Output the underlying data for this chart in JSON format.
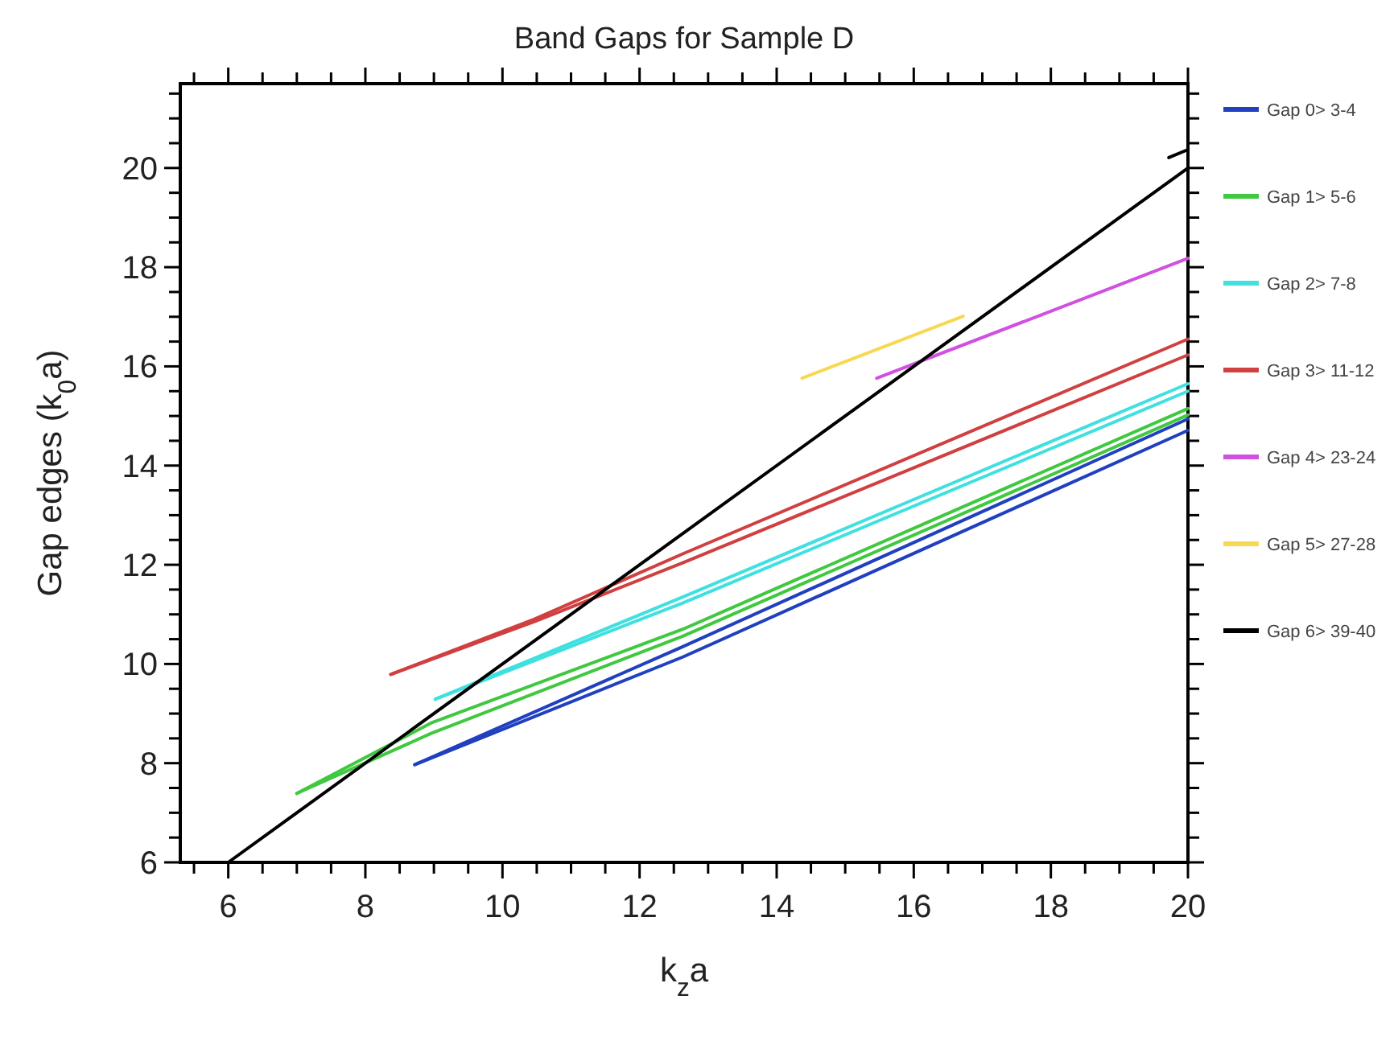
{
  "chart_data": {
    "type": "line",
    "title": "Band Gaps for Sample D",
    "xlabel": "k$_{z}$a",
    "ylabel": "Gap edges (k$_{0}$a)",
    "xlim": [
      5.3,
      20
    ],
    "ylim": [
      6,
      21.7
    ],
    "xticks": [
      {
        "value": 5.5,
        "label": null
      },
      6,
      {
        "value": 6.5,
        "label": null
      },
      {
        "value": 7,
        "label": null
      },
      {
        "value": 7.5,
        "label": null
      },
      8,
      {
        "value": 8.5,
        "label": null
      },
      {
        "value": 9,
        "label": null
      },
      {
        "value": 9.5,
        "label": null
      },
      10,
      {
        "value": 10.5,
        "label": null
      },
      {
        "value": 11,
        "label": null
      },
      {
        "value": 11.5,
        "label": null
      },
      12,
      {
        "value": 12.5,
        "label": null
      },
      {
        "value": 13,
        "label": null
      },
      {
        "value": 13.5,
        "label": null
      },
      14,
      {
        "value": 14.5,
        "label": null
      },
      {
        "value": 15,
        "label": null
      },
      {
        "value": 15.5,
        "label": null
      },
      16,
      {
        "value": 16.5,
        "label": null
      },
      {
        "value": 17,
        "label": null
      },
      {
        "value": 17.5,
        "label": null
      },
      18,
      {
        "value": 18.5,
        "label": null
      },
      {
        "value": 19,
        "label": null
      },
      {
        "value": 19.5,
        "label": null
      },
      20
    ],
    "yticks": [
      6,
      {
        "value": 6.5,
        "label": null
      },
      {
        "value": 7,
        "label": null
      },
      {
        "value": 7.5,
        "label": null
      },
      8,
      {
        "value": 8.5,
        "label": null
      },
      {
        "value": 9,
        "label": null
      },
      {
        "value": 9.5,
        "label": null
      },
      10,
      {
        "value": 10.5,
        "label": null
      },
      {
        "value": 11,
        "label": null
      },
      {
        "value": 11.5,
        "label": null
      },
      12,
      {
        "value": 12.5,
        "label": null
      },
      {
        "value": 13,
        "label": null
      },
      {
        "value": 13.5,
        "label": null
      },
      14,
      {
        "value": 14.5,
        "label": null
      },
      {
        "value": 15,
        "label": null
      },
      {
        "value": 15.5,
        "label": null
      },
      16,
      {
        "value": 16.5,
        "label": null
      },
      {
        "value": 17,
        "label": null
      },
      {
        "value": 17.5,
        "label": null
      },
      18,
      {
        "value": 18.5,
        "label": null
      },
      {
        "value": 19,
        "label": null
      },
      {
        "value": 19.5,
        "label": null
      },
      20,
      {
        "value": 20.5,
        "label": null
      },
      {
        "value": 21,
        "label": null
      },
      {
        "value": 21.5,
        "label": null
      }
    ],
    "grid": false,
    "legend": "right",
    "marker": "none",
    "line_style": "solid",
    "series": [
      {
        "name": "Gap 0> 3-4",
        "color": "#2040c0",
        "x": [
          8.72,
          12.63,
          20
        ],
        "values": [
          7.97,
          10.35,
          14.94
        ]
      },
      {
        "color": "#2040c0",
        "x": [
          8.72,
          12.63,
          20
        ],
        "values": [
          7.97,
          10.14,
          14.71
        ]
      },
      {
        "name": "Gap 1> 5-6",
        "color": "#40c840",
        "x": [
          7,
          8.96,
          12.63,
          20
        ],
        "values": [
          7.39,
          8.81,
          10.7,
          15.15
        ]
      },
      {
        "color": "#40c840",
        "x": [
          7,
          8.96,
          12.63,
          20
        ],
        "values": [
          7.39,
          8.6,
          10.56,
          15.02
        ]
      },
      {
        "name": "Gap 2> 7-8",
        "color": "#40e0e0",
        "x": [
          9.02,
          12.63,
          20
        ],
        "values": [
          9.29,
          11.35,
          15.65
        ]
      },
      {
        "color": "#40e0e0",
        "x": [
          9.02,
          12.63,
          20
        ],
        "values": [
          9.29,
          11.23,
          15.5
        ]
      },
      {
        "name": "Gap 3> 11-12",
        "color": "#d04040",
        "x": [
          8.37,
          10.46,
          12.63,
          20
        ],
        "values": [
          9.79,
          10.9,
          12.22,
          16.55
        ]
      },
      {
        "color": "#d04040",
        "x": [
          8.37,
          10.46,
          12.63,
          20
        ],
        "values": [
          9.79,
          10.85,
          12.04,
          16.23
        ]
      },
      {
        "name": "Gap 4> 23-24",
        "color": "#d050e0",
        "x": [
          15.46,
          20
        ],
        "values": [
          15.76,
          18.18
        ]
      },
      {
        "name": "Gap 5> 27-28",
        "color": "#f8d850",
        "x": [
          14.37,
          16.72
        ],
        "values": [
          15.76,
          17.01
        ]
      },
      {
        "name": "Gap 6> 39-40",
        "color": "#000000",
        "x": [
          6,
          20
        ],
        "values": [
          6,
          20
        ]
      },
      {
        "color": "#000000",
        "x": [
          19.72,
          20
        ],
        "values": [
          20.21,
          20.37
        ]
      }
    ]
  }
}
